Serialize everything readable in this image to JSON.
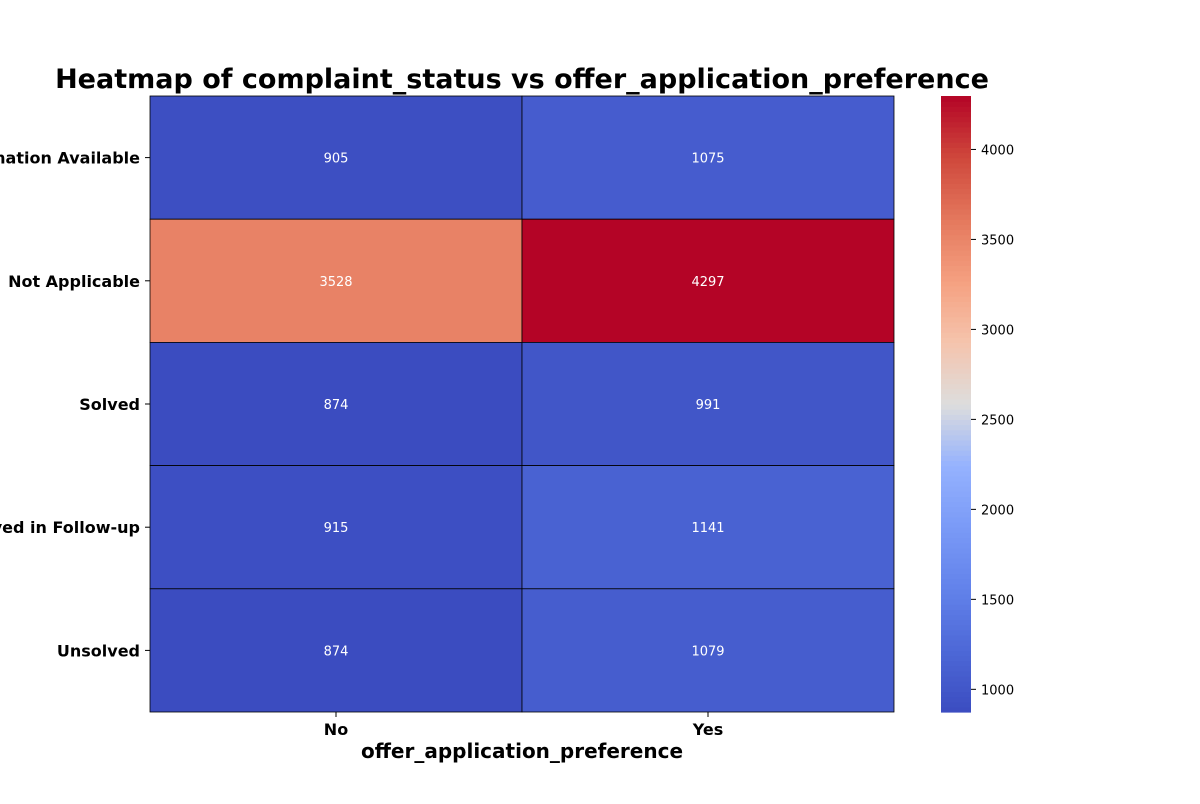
{
  "chart_data": {
    "type": "heatmap",
    "title": "Heatmap of complaint_status vs offer_application_preference",
    "xlabel": "offer_application_preference",
    "ylabel": "",
    "x_categories": [
      "No",
      "Yes"
    ],
    "y_categories": [
      "No Information Available",
      "Not Applicable",
      "Solved",
      "Solved in Follow-up",
      "Unsolved"
    ],
    "values": [
      [
        905,
        1075
      ],
      [
        3528,
        4297
      ],
      [
        874,
        991
      ],
      [
        915,
        1141
      ],
      [
        874,
        1079
      ]
    ],
    "colormap": "coolwarm",
    "vmin": 874,
    "vmax": 4297,
    "colorbar_ticks": [
      1000,
      1500,
      2000,
      2500,
      3000,
      3500,
      4000
    ],
    "annotation_color": "#ffffff"
  }
}
